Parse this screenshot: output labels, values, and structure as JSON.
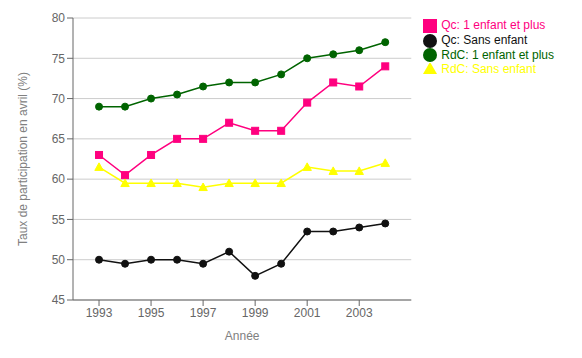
{
  "chart_data": {
    "type": "line",
    "x": [
      1993,
      1994,
      1995,
      1996,
      1997,
      1998,
      1999,
      2000,
      2001,
      2002,
      2003,
      2004
    ],
    "series": [
      {
        "name": "Qc: Sans enfant",
        "color": "#111111",
        "marker": "circle",
        "values": [
          50.0,
          49.5,
          50.0,
          50.0,
          49.5,
          51.0,
          48.0,
          49.5,
          53.5,
          53.5,
          54.0,
          54.5
        ]
      },
      {
        "name": "Qc: 1 enfant et plus",
        "color": "#ff007f",
        "marker": "square",
        "values": [
          63.0,
          60.5,
          63.0,
          65.0,
          65.0,
          67.0,
          66.0,
          66.0,
          69.5,
          72.0,
          71.5,
          74.0
        ]
      },
      {
        "name": "RdC: Sans enfant",
        "color": "#ffff00",
        "marker": "triangle",
        "values": [
          61.5,
          59.5,
          59.5,
          59.5,
          59.0,
          59.5,
          59.5,
          59.5,
          61.5,
          61.0,
          61.0,
          62.0
        ]
      },
      {
        "name": "RdC: 1 enfant et plus",
        "color": "#006400",
        "marker": "circle",
        "values": [
          69.0,
          69.0,
          70.0,
          70.5,
          71.5,
          72.0,
          72.0,
          73.0,
          75.0,
          75.5,
          76.0,
          77.0
        ]
      }
    ],
    "xlabel": "Année",
    "ylabel": "Taux de participation en avril (%)",
    "xlim": [
      1992,
      2005
    ],
    "xticks": [
      1993,
      1995,
      1997,
      1999,
      2001,
      2003
    ],
    "ylim": [
      45,
      80
    ],
    "yticks": [
      45,
      50,
      55,
      60,
      65,
      70,
      75,
      80
    ],
    "grid": true,
    "legend": "right"
  }
}
